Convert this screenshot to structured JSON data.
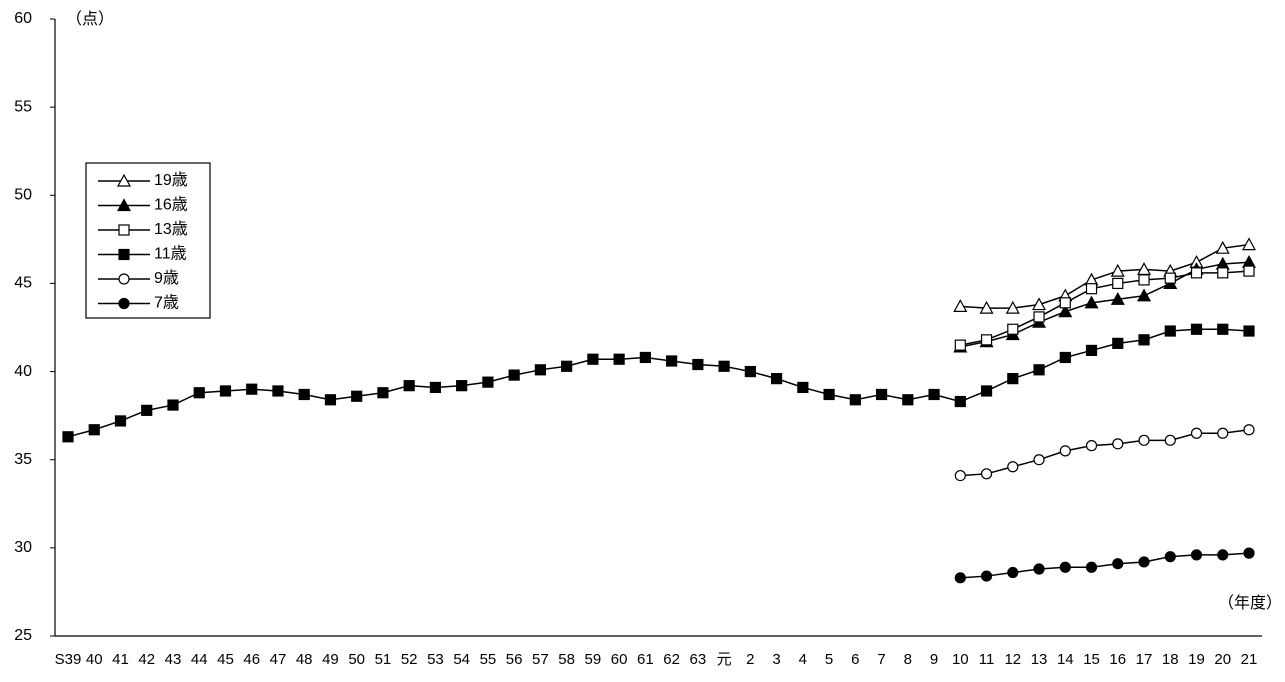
{
  "chart_data": {
    "type": "line",
    "y_unit_label": "（点）",
    "x_unit_label": "（年度）",
    "categories": [
      "S39",
      "40",
      "41",
      "42",
      "43",
      "44",
      "45",
      "46",
      "47",
      "48",
      "49",
      "50",
      "51",
      "52",
      "53",
      "54",
      "55",
      "56",
      "57",
      "58",
      "59",
      "60",
      "61",
      "62",
      "63",
      "元",
      "2",
      "3",
      "4",
      "5",
      "6",
      "7",
      "8",
      "9",
      "10",
      "11",
      "12",
      "13",
      "14",
      "15",
      "16",
      "17",
      "18",
      "19",
      "20",
      "21"
    ],
    "ylim": [
      25,
      60
    ],
    "yticks": [
      25,
      30,
      35,
      40,
      45,
      50,
      55,
      60
    ],
    "grid": false,
    "legend": "upper-left",
    "series": [
      {
        "name": "19歳",
        "color": "#000000",
        "marker": "triangle",
        "filled": false,
        "values": [
          null,
          null,
          null,
          null,
          null,
          null,
          null,
          null,
          null,
          null,
          null,
          null,
          null,
          null,
          null,
          null,
          null,
          null,
          null,
          null,
          null,
          null,
          null,
          null,
          null,
          null,
          null,
          null,
          null,
          null,
          null,
          null,
          null,
          null,
          43.7,
          43.6,
          43.6,
          43.8,
          44.3,
          45.2,
          45.7,
          45.8,
          45.7,
          46.2,
          47.0,
          47.2
        ]
      },
      {
        "name": "16歳",
        "color": "#000000",
        "marker": "triangle",
        "filled": true,
        "values": [
          null,
          null,
          null,
          null,
          null,
          null,
          null,
          null,
          null,
          null,
          null,
          null,
          null,
          null,
          null,
          null,
          null,
          null,
          null,
          null,
          null,
          null,
          null,
          null,
          null,
          null,
          null,
          null,
          null,
          null,
          null,
          null,
          null,
          null,
          41.4,
          41.7,
          42.1,
          42.8,
          43.4,
          43.9,
          44.1,
          44.3,
          45.0,
          45.8,
          46.1,
          46.2
        ]
      },
      {
        "name": "13歳",
        "color": "#000000",
        "marker": "square",
        "filled": false,
        "values": [
          null,
          null,
          null,
          null,
          null,
          null,
          null,
          null,
          null,
          null,
          null,
          null,
          null,
          null,
          null,
          null,
          null,
          null,
          null,
          null,
          null,
          null,
          null,
          null,
          null,
          null,
          null,
          null,
          null,
          null,
          null,
          null,
          null,
          null,
          41.5,
          41.8,
          42.4,
          43.1,
          43.9,
          44.7,
          45.0,
          45.2,
          45.3,
          45.6,
          45.6,
          45.7
        ]
      },
      {
        "name": "11歳",
        "color": "#000000",
        "marker": "square",
        "filled": true,
        "values": [
          36.3,
          36.7,
          37.2,
          37.8,
          38.1,
          38.8,
          38.9,
          39.0,
          38.9,
          38.7,
          38.4,
          38.6,
          38.8,
          39.2,
          39.1,
          39.2,
          39.4,
          39.8,
          40.1,
          40.3,
          40.7,
          40.7,
          40.8,
          40.6,
          40.4,
          40.3,
          40.0,
          39.6,
          39.1,
          38.7,
          38.4,
          38.7,
          38.4,
          38.7,
          38.3,
          38.9,
          39.6,
          40.1,
          40.8,
          41.2,
          41.6,
          41.8,
          42.3,
          42.4,
          42.4,
          42.3
        ]
      },
      {
        "name": "9歳",
        "color": "#000000",
        "marker": "circle",
        "filled": false,
        "values": [
          null,
          null,
          null,
          null,
          null,
          null,
          null,
          null,
          null,
          null,
          null,
          null,
          null,
          null,
          null,
          null,
          null,
          null,
          null,
          null,
          null,
          null,
          null,
          null,
          null,
          null,
          null,
          null,
          null,
          null,
          null,
          null,
          null,
          null,
          34.1,
          34.2,
          34.6,
          35.0,
          35.5,
          35.8,
          35.9,
          36.1,
          36.1,
          36.5,
          36.5,
          36.7
        ]
      },
      {
        "name": "7歳",
        "color": "#000000",
        "marker": "circle",
        "filled": true,
        "values": [
          null,
          null,
          null,
          null,
          null,
          null,
          null,
          null,
          null,
          null,
          null,
          null,
          null,
          null,
          null,
          null,
          null,
          null,
          null,
          null,
          null,
          null,
          null,
          null,
          null,
          null,
          null,
          null,
          null,
          null,
          null,
          null,
          null,
          null,
          28.3,
          28.4,
          28.6,
          28.8,
          28.9,
          28.9,
          29.1,
          29.2,
          29.5,
          29.6,
          29.6,
          29.7
        ]
      }
    ]
  }
}
